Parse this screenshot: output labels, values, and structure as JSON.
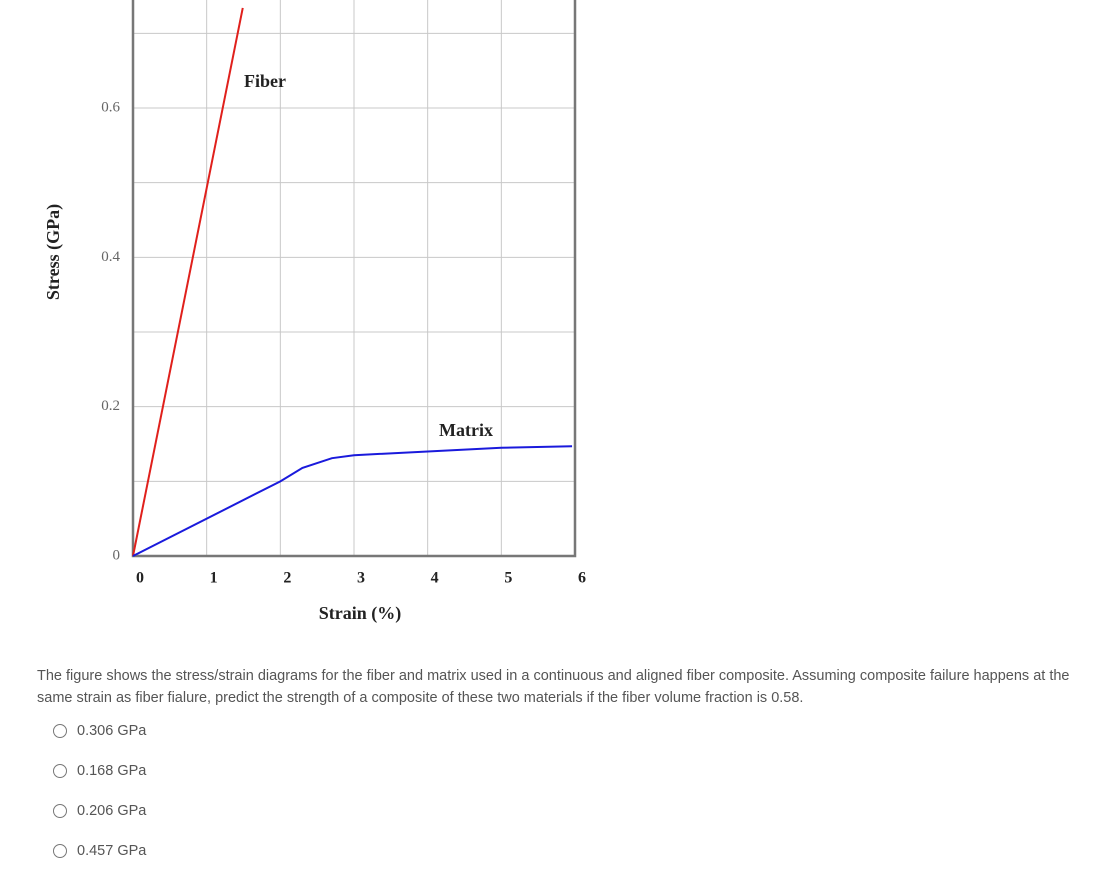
{
  "chart_data": {
    "type": "line",
    "xlabel": "Strain (%)",
    "ylabel": "Stress (GPa)",
    "xlim": [
      0,
      6
    ],
    "ylim": [
      0,
      0.75
    ],
    "xticks": [
      0,
      1,
      2,
      3,
      4,
      5,
      6
    ],
    "yticks": [
      0,
      0.2,
      0.4,
      0.6
    ],
    "y_grid": [
      0.1,
      0.3,
      0.5,
      0.7
    ],
    "grid": true,
    "annotations": [
      "Fiber",
      "Matrix"
    ],
    "series": [
      {
        "name": "Fiber",
        "color": "#e0201c",
        "x": [
          0,
          1.49
        ],
        "values": [
          0,
          0.734
        ]
      },
      {
        "name": "Matrix",
        "color": "#1a1adc",
        "x": [
          0,
          2,
          2.3,
          2.7,
          3,
          4,
          5,
          5.96
        ],
        "values": [
          0,
          0.1,
          0.118,
          0.131,
          0.135,
          0.14,
          0.145,
          0.147
        ]
      }
    ]
  },
  "question": {
    "text": "The figure shows the stress/strain diagrams for the fiber and matrix used in a continuous and aligned fiber composite. Assuming composite failure happens at the same strain as fiber fialure, predict the strength of a composite of these two materials if the fiber volume fraction is 0.58.",
    "options": [
      "0.306 GPa",
      "0.168 GPa",
      "0.206 GPa",
      "0.457 GPa"
    ]
  }
}
